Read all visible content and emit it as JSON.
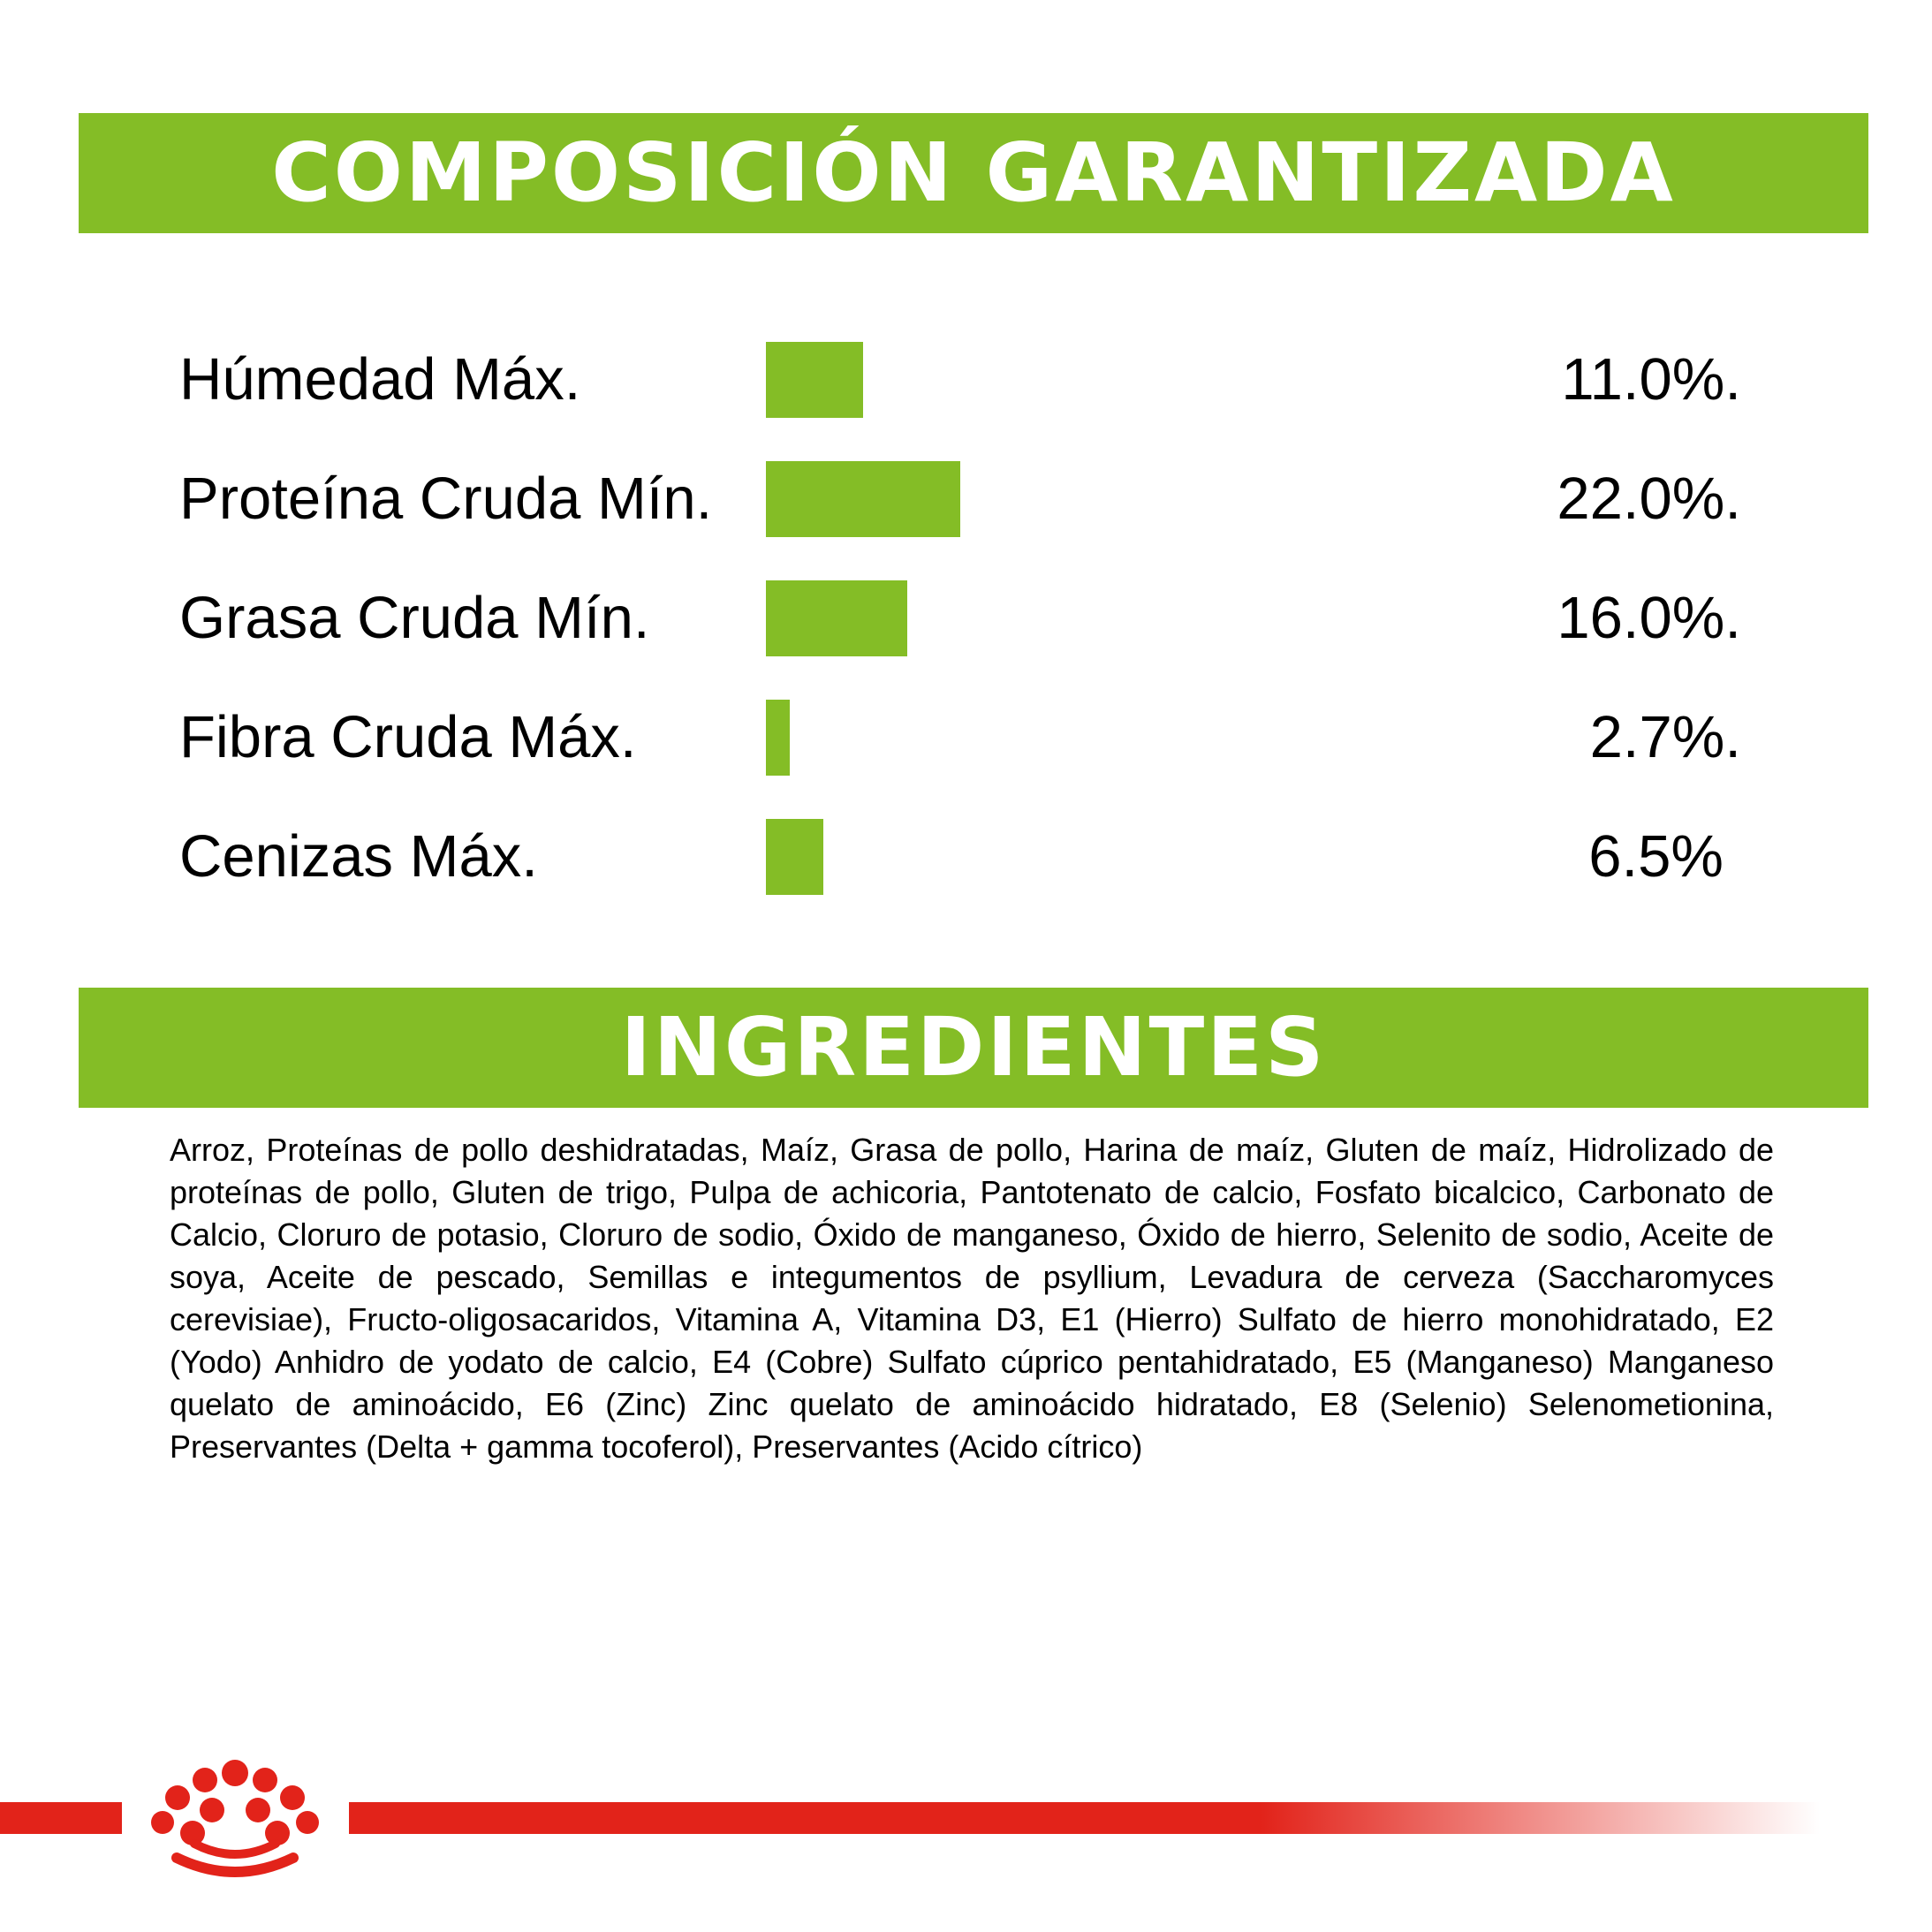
{
  "colors": {
    "banner_green": "#84bd26",
    "bar_green": "#84bd26",
    "brand_red": "#e2231a",
    "text": "#000000"
  },
  "composition_banner": {
    "title": "COMPOSICIÓN GARANTIZADA"
  },
  "chart_data": {
    "type": "bar",
    "orientation": "horizontal",
    "title": "COMPOSICIÓN GARANTIZADA",
    "categories": [
      "Húmedad Máx.",
      "Proteína Cruda Mín.",
      "Grasa Cruda Mín.",
      "Fibra Cruda Máx.",
      "Cenizas Máx."
    ],
    "values": [
      11.0,
      22.0,
      16.0,
      2.7,
      6.5
    ],
    "value_labels": [
      "11.0%.",
      "22.0%.",
      "16.0%.",
      "2.7%.",
      "6.5%"
    ],
    "xlim": [
      0,
      22.0
    ],
    "grid": false,
    "legend": "none"
  },
  "ingredients_banner": {
    "title": "INGREDIENTES"
  },
  "ingredients": {
    "text": "Arroz, Proteínas de pollo deshidratadas, Maíz, Grasa de pollo, Harina de maíz, Gluten de maíz, Hidrolizado de proteínas de pollo, Gluten de trigo, Pulpa de achicoria, Pantotenato de calcio, Fosfato bicalcico, Carbonato de Calcio, Cloruro de potasio, Cloruro de sodio, Óxido de manganeso, Óxido de hierro, Selenito de sodio, Aceite de soya, Aceite de pescado, Semillas e integumentos de psyllium, Levadura de cerveza (Saccharomyces cerevisiae), Fructo-oligosacaridos, Vitamina A, Vitamina D3, E1 (Hierro) Sulfato de hierro monohidratado, E2 (Yodo) Anhidro de yodato de calcio, E4 (Cobre) Sulfato cúprico pentahidratado, E5 (Manganeso) Manganeso quelato de aminoácido, E6 (Zinc) Zinc quelato de aminoácido hidratado, E8 (Selenio) Selenometionina, Preservantes (Delta + gamma tocoferol), Preservantes (Acido cítrico)"
  },
  "footer": {
    "logo_icon": "royal-canin-crown-icon"
  }
}
